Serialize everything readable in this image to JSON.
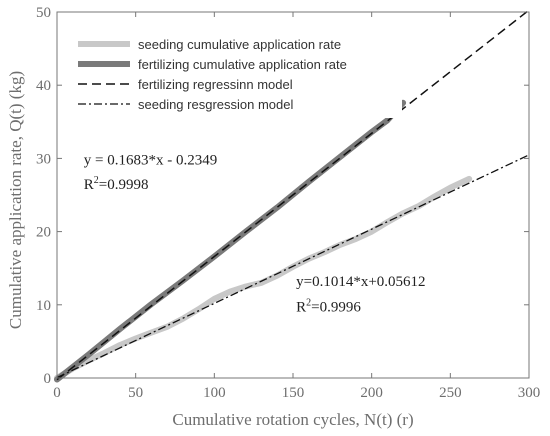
{
  "chart_data": {
    "type": "line",
    "xlabel": "Cumulative rotation cycles, N(t) (r)",
    "ylabel": "Cumulative application rate, Q(t) (kg)",
    "xlim": [
      0,
      300
    ],
    "ylim": [
      0,
      50
    ],
    "x_ticks": [
      0,
      50,
      100,
      150,
      200,
      250,
      300
    ],
    "y_ticks": [
      0,
      10,
      20,
      30,
      40,
      50
    ],
    "grid": false,
    "legend_position": "top-left",
    "colors": {
      "seeding_measured": "#c8c8c8",
      "fertilizing_measured": "#7a7a7a",
      "model_lines": "#111111",
      "axes": "#777777"
    },
    "series": [
      {
        "name": "seeding cumulative application rate",
        "style": "thick-light-gray",
        "x": [
          0,
          10,
          20,
          30,
          40,
          50,
          60,
          70,
          80,
          90,
          100,
          110,
          120,
          130,
          140,
          150,
          160,
          170,
          180,
          190,
          200,
          210,
          220,
          230,
          240,
          250,
          262
        ],
        "y": [
          0,
          1.3,
          2.4,
          3.4,
          4.5,
          5.4,
          6.2,
          7.0,
          8.1,
          9.4,
          10.8,
          11.8,
          12.5,
          13.0,
          14.0,
          15.2,
          16.3,
          17.2,
          18.2,
          19.0,
          20.0,
          21.3,
          22.5,
          23.5,
          24.8,
          26.0,
          27.2
        ]
      },
      {
        "name": "fertilizing cumulative application rate",
        "style": "thick-dark-gray",
        "x": [
          0,
          20,
          40,
          60,
          80,
          100,
          120,
          140,
          160,
          180,
          200,
          210,
          220
        ],
        "y": [
          -0.2,
          3.2,
          6.7,
          10.1,
          13.3,
          16.6,
          20.0,
          23.3,
          26.8,
          30.2,
          33.6,
          35.2,
          37.6
        ]
      },
      {
        "name": "fertilizing regressinn model",
        "style": "dashed",
        "slope": 0.1683,
        "intercept": -0.2349,
        "x_range": [
          0,
          300
        ]
      },
      {
        "name": "seeding resgression model",
        "style": "dash-dot",
        "slope": 0.1014,
        "intercept": 0.05612,
        "x_range": [
          0,
          300
        ]
      }
    ],
    "annotations": [
      {
        "text": "y = 0.1683*x - 0.2349",
        "r2_prefix": "R",
        "r2_sup": "2",
        "r2_suffix": "=0.9998",
        "x": 17,
        "y": 29.2,
        "r2_y": 25.8
      },
      {
        "text": "y=0.1014*x+0.05612",
        "r2_prefix": "R",
        "r2_sup": "2",
        "r2_suffix": "=0.9996",
        "x": 152,
        "y": 12.6,
        "r2_y": 9.1
      }
    ]
  }
}
